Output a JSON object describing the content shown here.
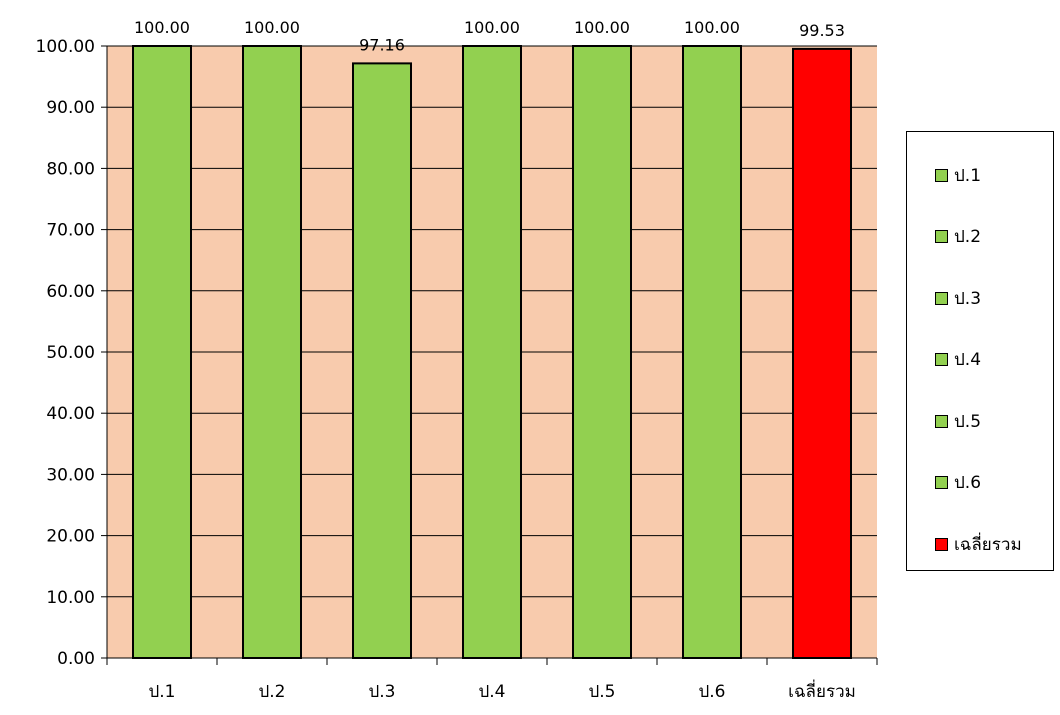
{
  "chart_data": {
    "type": "bar",
    "categories": [
      "ป.1",
      "ป.2",
      "ป.3",
      "ป.4",
      "ป.5",
      "ป.6",
      "เฉลี่ยรวม"
    ],
    "values": [
      100.0,
      100.0,
      97.16,
      100.0,
      100.0,
      100.0,
      99.53
    ],
    "data_labels": [
      "100.00",
      "100.00",
      "97.16",
      "100.00",
      "100.00",
      "100.00",
      "99.53"
    ],
    "bar_colors": [
      "#92d050",
      "#92d050",
      "#92d050",
      "#92d050",
      "#92d050",
      "#92d050",
      "#ff0000"
    ],
    "ylim": [
      0,
      100
    ],
    "yticks": [
      "0.00",
      "10.00",
      "20.00",
      "30.00",
      "40.00",
      "50.00",
      "60.00",
      "70.00",
      "80.00",
      "90.00",
      "100.00"
    ],
    "plot_background": "#f8cbad",
    "grid": true,
    "legend": {
      "placement": "right",
      "entries": [
        {
          "label": "ป.1",
          "color": "#92d050"
        },
        {
          "label": "ป.2",
          "color": "#92d050"
        },
        {
          "label": "ป.3",
          "color": "#92d050"
        },
        {
          "label": "ป.4",
          "color": "#92d050"
        },
        {
          "label": "ป.5",
          "color": "#92d050"
        },
        {
          "label": "ป.6",
          "color": "#92d050"
        },
        {
          "label": "เฉลี่ยรวม",
          "color": "#ff0000"
        }
      ]
    }
  }
}
